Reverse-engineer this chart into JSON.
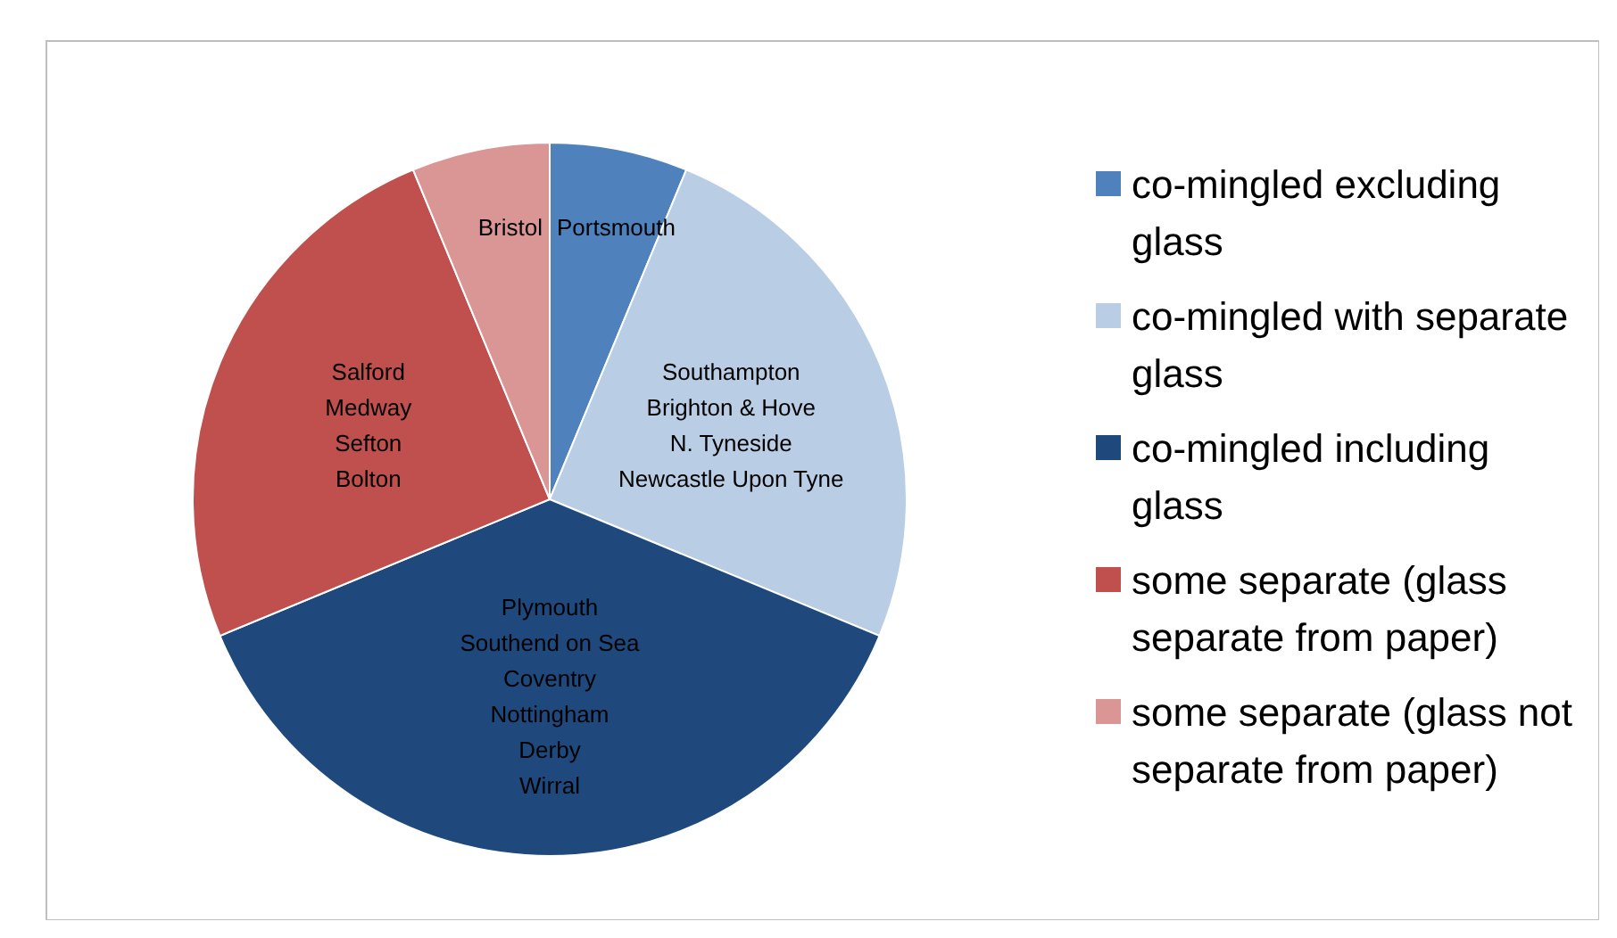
{
  "chart_data": {
    "type": "pie",
    "categories": [
      "co-mingled excluding glass",
      "co-mingled with separate glass",
      "co-mingled including glass",
      "some separate (glass separate from paper)",
      "some separate (glass not separate from paper)"
    ],
    "values": [
      6.25,
      25,
      37.5,
      25,
      6.25
    ],
    "colors": [
      "#4f81bd",
      "#b9cde5",
      "#1f497d",
      "#c0504d",
      "#d99694"
    ],
    "value_labels": [
      "Portsmouth",
      "Southampton\nBrighton & Hove\nN. Tyneside\nNewcastle Upon Tyne",
      "Plymouth\nSouthend on Sea\nCoventry\nNottingham\nDerby\nWirral",
      "Salford\nMedway\nSefton\nBolton",
      "Bristol"
    ],
    "legend": "right"
  }
}
